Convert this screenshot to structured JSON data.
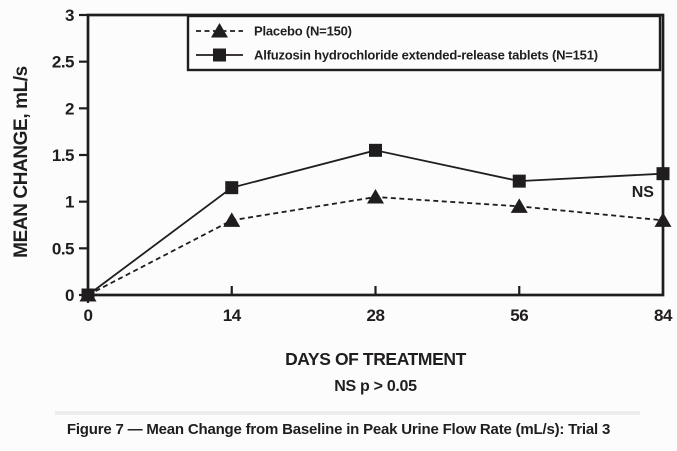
{
  "figure": {
    "caption": "Figure 7 — Mean Change from Baseline in Peak Urine Flow Rate (mL/s): Trial 3"
  },
  "chart_data": {
    "type": "line",
    "title": "",
    "xlabel": "DAYS OF TREATMENT",
    "xlabel_note": "NS p > 0.05",
    "ylabel": "MEAN CHANGE, mL/s",
    "categories": [
      0,
      14,
      28,
      56,
      84
    ],
    "x_tick_labels": [
      "0",
      "14",
      "28",
      "56",
      "84"
    ],
    "x_axis_spacing": "equal",
    "ylim": [
      0,
      3
    ],
    "yticks": [
      0,
      0.5,
      1,
      1.5,
      2,
      2.5,
      3
    ],
    "ytick_labels": [
      "0",
      "0.5",
      "1",
      "1.5",
      "2",
      "2.5",
      "3"
    ],
    "grid": false,
    "legend_position": "top-inside",
    "line_color": "#201d1e",
    "background_color": "#fcfcfc",
    "series": [
      {
        "name": "Placebo (N=150)",
        "marker": "triangle",
        "line": "dashed",
        "values": [
          0,
          0.8,
          1.05,
          0.95,
          0.8
        ]
      },
      {
        "name": "Alfuzosin hydrochloride extended-release tablets (N=151)",
        "marker": "square",
        "line": "solid",
        "values": [
          0,
          1.15,
          1.55,
          1.22,
          1.3
        ]
      }
    ],
    "annotations": [
      {
        "text": "NS",
        "x_index": 3.86,
        "y": 1.05
      }
    ]
  }
}
